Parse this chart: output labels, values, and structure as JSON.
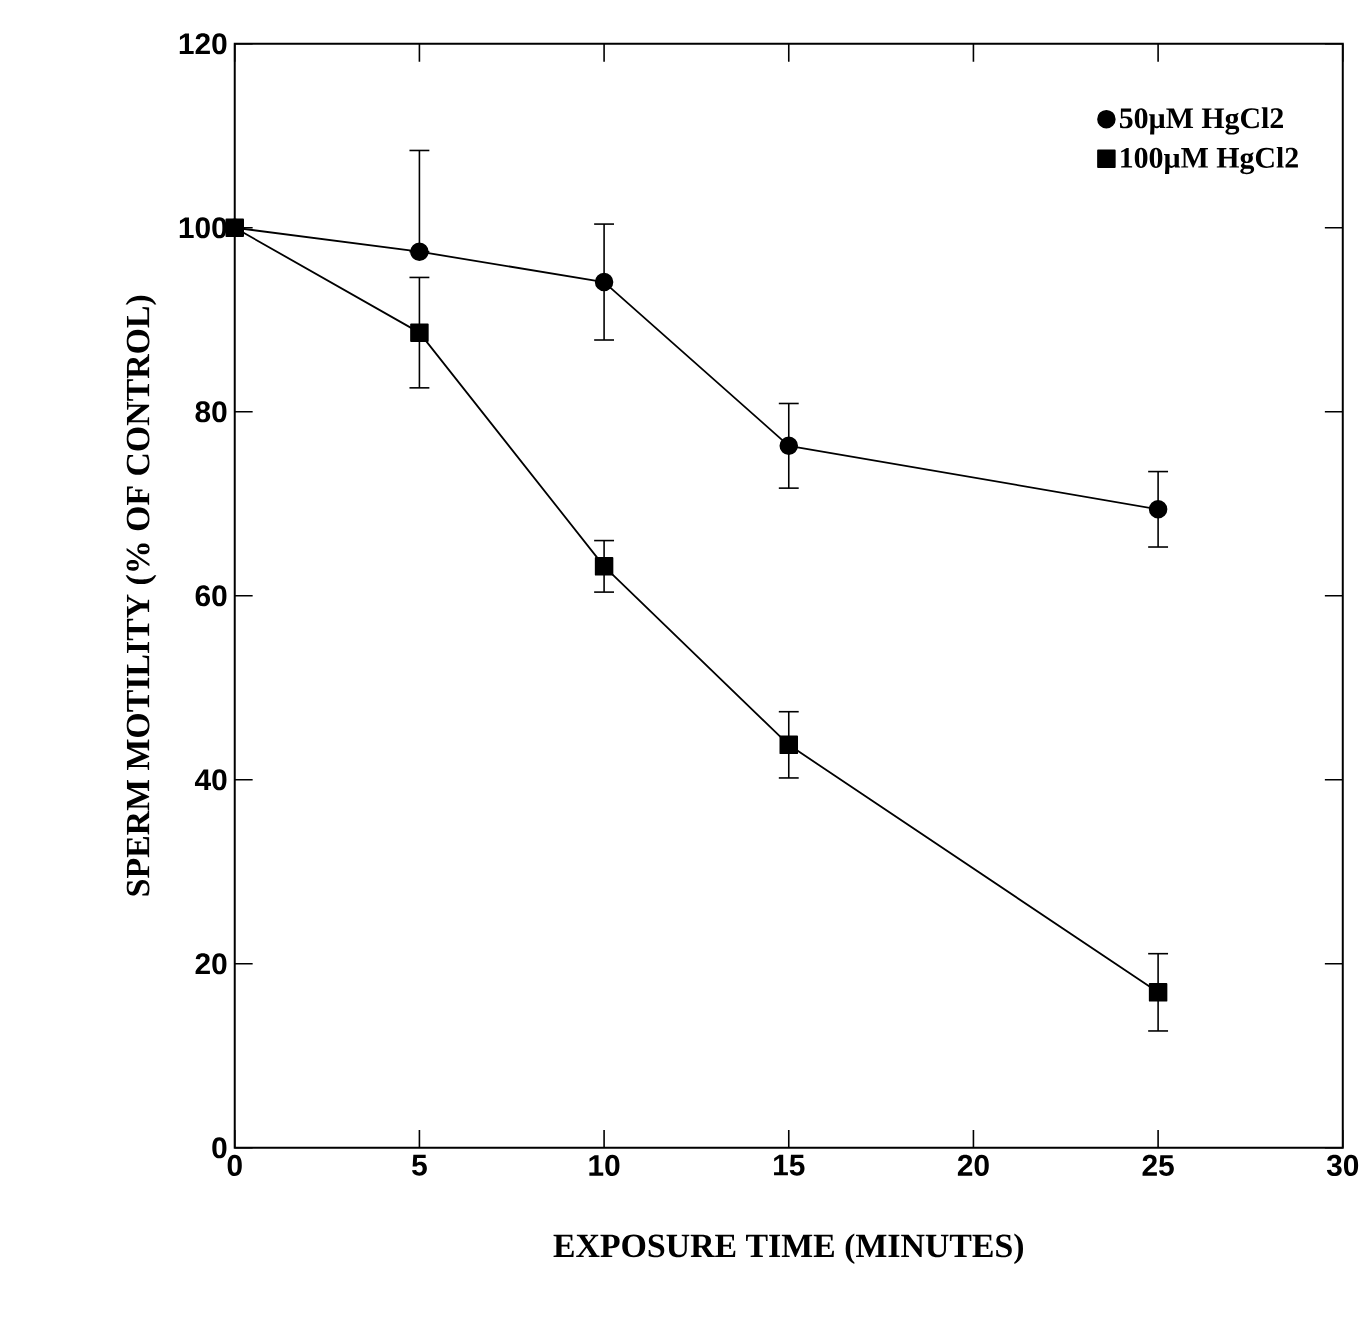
{
  "chart_data": {
    "type": "line",
    "xlabel": "EXPOSURE TIME (MINUTES)",
    "ylabel": "SPERM MOTILITY (% OF CONTROL)",
    "x": [
      0,
      5,
      10,
      15,
      25
    ],
    "series": [
      {
        "name": "50µM HgCl2",
        "color": "#000000",
        "marker": "circle",
        "values": [
          100,
          97.4,
          94.1,
          76.3,
          69.4
        ],
        "errors": [
          null,
          [
            97.4,
            108.4
          ],
          6.3,
          4.6,
          4.1
        ]
      },
      {
        "name": "100µM HgCl2",
        "color": "#000000",
        "marker": "square",
        "values": [
          100,
          88.6,
          63.2,
          43.8,
          16.9
        ],
        "errors": [
          null,
          6,
          2.8,
          3.6,
          4.2
        ]
      }
    ],
    "xlim": [
      0,
      30
    ],
    "xticks": [
      0,
      5,
      10,
      15,
      20,
      25,
      30
    ],
    "ylim": [
      0,
      120
    ],
    "yticks": [
      0,
      20,
      40,
      60,
      80,
      100,
      120
    ],
    "legend": "top right",
    "grid": false,
    "line_style": "solid"
  }
}
